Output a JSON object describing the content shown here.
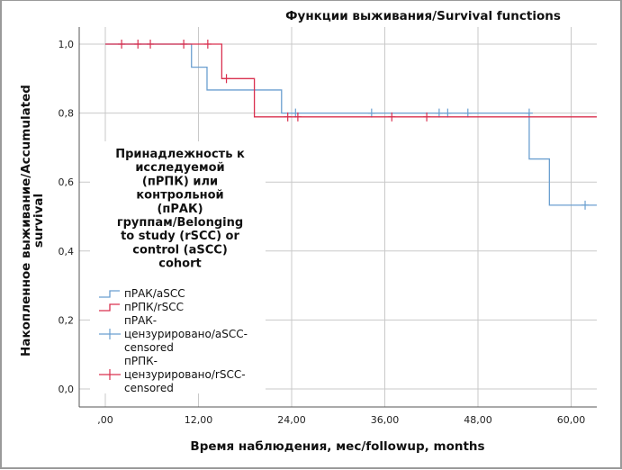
{
  "chart_data": {
    "type": "line",
    "subtype": "kaplan-meier step",
    "title": "Функции выживания/Survival functions",
    "xlabel": "Время наблюдения, мес/followup, months",
    "ylabel_lines": [
      "Накопленное выживание/Accumulated",
      "survival"
    ],
    "xlim": [
      -3.4,
      63.3
    ],
    "ylim": [
      -0.026,
      1.08
    ],
    "x_ticks": [
      0,
      12,
      24,
      36,
      48,
      60
    ],
    "x_tick_labels": [
      ",00",
      "12,00",
      "24,00",
      "36,00",
      "48,00",
      "60,00"
    ],
    "y_ticks": [
      0,
      0.2,
      0.4,
      0.6,
      0.8,
      1.0
    ],
    "y_tick_labels": [
      "0,0",
      "0,2",
      "0,4",
      "0,6",
      "0,8",
      "1,0"
    ],
    "grid": true,
    "legend": {
      "placement": "center-left",
      "title_lines": [
        "Принадлежность к",
        "исследуемой",
        "(пРПК) или",
        "контрольной",
        "(пРАК)",
        "группам/Belonging",
        "to study (rSCC) or",
        "control (aSCC)",
        "cohort"
      ],
      "entries": [
        {
          "kind": "step",
          "series": "aSCC",
          "lines": [
            "пРАК/aSCC"
          ]
        },
        {
          "kind": "step",
          "series": "rSCC",
          "lines": [
            "пРПК/rSCC"
          ]
        },
        {
          "kind": "censor",
          "series": "aSCC",
          "lines": [
            "пРАК-",
            "цензурировано/aSCC-",
            "censored"
          ]
        },
        {
          "kind": "censor",
          "series": "rSCC",
          "lines": [
            "пРПК-",
            "цензурировано/rSCC-",
            "censored"
          ]
        }
      ]
    },
    "series": [
      {
        "name": "пРАК/aSCC",
        "id": "aSCC",
        "color": "#6b9fd0",
        "steps": [
          [
            0,
            1.0
          ],
          [
            11.1,
            0.933
          ],
          [
            13.1,
            0.867
          ],
          [
            22.7,
            0.8
          ],
          [
            54.6,
            0.667
          ],
          [
            57.2,
            0.533
          ]
        ],
        "end_x": 63.3,
        "censored": [
          [
            24.5,
            0.8
          ],
          [
            34.3,
            0.8
          ],
          [
            43.0,
            0.8
          ],
          [
            44.1,
            0.8
          ],
          [
            46.7,
            0.8
          ],
          [
            54.6,
            0.8
          ],
          [
            61.8,
            0.533
          ]
        ]
      },
      {
        "name": "пРПК/rSCC",
        "id": "rSCC",
        "color": "#d9304f",
        "steps": [
          [
            0,
            1.0
          ],
          [
            15.0,
            0.9
          ],
          [
            19.2,
            0.789
          ]
        ],
        "end_x": 63.3,
        "censored": [
          [
            2.1,
            1.0
          ],
          [
            4.2,
            1.0
          ],
          [
            5.8,
            1.0
          ],
          [
            10.1,
            1.0
          ],
          [
            13.2,
            1.0
          ],
          [
            15.6,
            0.9
          ],
          [
            23.5,
            0.789
          ],
          [
            24.8,
            0.789
          ],
          [
            36.9,
            0.789
          ],
          [
            41.4,
            0.789
          ]
        ]
      }
    ]
  }
}
